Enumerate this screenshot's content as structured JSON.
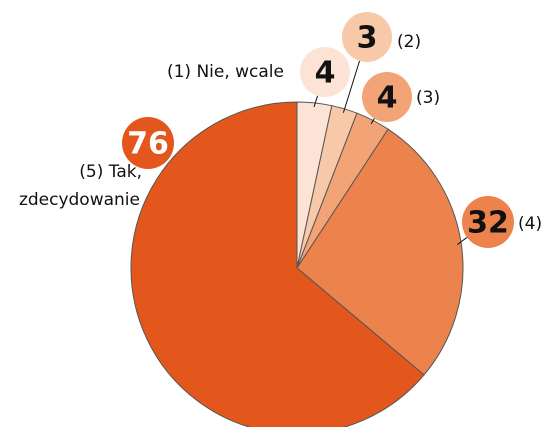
{
  "chart_data": {
    "type": "pie",
    "categories": [
      "(1) Nie, wcale",
      "(2)",
      "(3)",
      "(4)",
      "(5) Tak, zdecydowanie"
    ],
    "values": [
      4,
      3,
      4,
      32,
      76
    ],
    "colors": [
      "#fce3d6",
      "#f8c9a9",
      "#f2a476",
      "#ec834c",
      "#e3571d"
    ]
  }
}
